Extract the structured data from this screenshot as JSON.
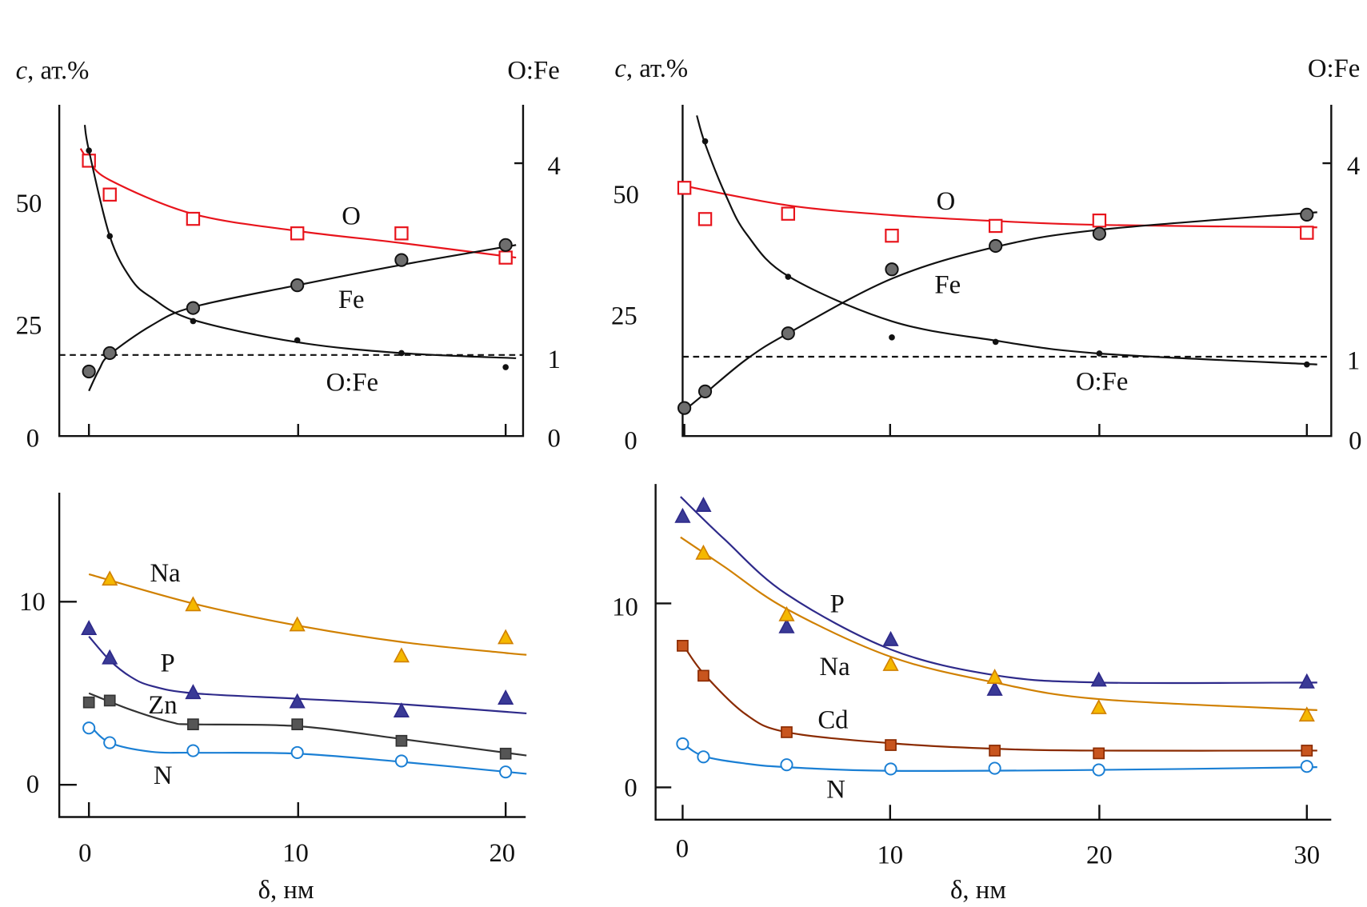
{
  "chart_data": [
    {
      "type": "scatter",
      "panel": "top-left",
      "ylabel_left": "c, ат.%",
      "ylabel_right": "O:Fe",
      "yticks_left": [
        "50",
        "25",
        "0"
      ],
      "yticks_right": [
        "4",
        "1",
        "0"
      ],
      "xlim": [
        0,
        20
      ],
      "ylim": [
        0,
        65
      ],
      "ylim_right": [
        0,
        5
      ],
      "reference_line": {
        "axis": "right",
        "value": 1,
        "style": "dashed"
      },
      "series": [
        {
          "name": "O",
          "axis": "left",
          "marker": "open-square",
          "color": "#e8141c",
          "x": [
            0,
            1,
            5,
            10,
            15,
            20
          ],
          "y": [
            57,
            50,
            45,
            42,
            42,
            37
          ],
          "curve": [
            [
              -0.4,
              59.5
            ],
            [
              0,
              57
            ],
            [
              1,
              53
            ],
            [
              5,
              46
            ],
            [
              10,
              42.5
            ],
            [
              15,
              40
            ],
            [
              20.5,
              37
            ]
          ]
        },
        {
          "name": "Fe",
          "axis": "left",
          "marker": "filled-circle",
          "color": "#111111",
          "x": [
            0,
            1,
            5,
            10,
            15,
            20
          ],
          "y": [
            13.5,
            17.3,
            26.6,
            31.3,
            36.5,
            39.6
          ],
          "curve": [
            [
              0,
              9.5
            ],
            [
              0.5,
              14
            ],
            [
              1,
              17
            ],
            [
              3,
              23
            ],
            [
              5,
              26.8
            ],
            [
              10,
              31.3
            ],
            [
              15,
              35.5
            ],
            [
              20.5,
              39.6
            ]
          ]
        },
        {
          "name": "O:Fe",
          "axis": "right",
          "marker": "dot",
          "color": "#111111",
          "x": [
            0,
            1,
            5,
            10,
            15,
            20
          ],
          "y": [
            4.2,
            2.86,
            1.53,
            1.23,
            1.03,
            0.81
          ],
          "curve": [
            [
              -0.2,
              4.6
            ],
            [
              0,
              4.2
            ],
            [
              1,
              2.86
            ],
            [
              2,
              2.2
            ],
            [
              3,
              1.9
            ],
            [
              5,
              1.55
            ],
            [
              10,
              1.2
            ],
            [
              15,
              1.03
            ],
            [
              20.5,
              0.95
            ]
          ]
        }
      ]
    },
    {
      "type": "scatter",
      "panel": "top-right",
      "ylabel_left": "c, ат.%",
      "ylabel_right": "O:Fe",
      "yticks_left": [
        "50",
        "25",
        "0"
      ],
      "yticks_right": [
        "4",
        "1",
        "0"
      ],
      "xlim": [
        0,
        30
      ],
      "ylim": [
        0,
        65
      ],
      "ylim_right": [
        0,
        5
      ],
      "reference_line": {
        "axis": "right",
        "value": 1,
        "style": "dashed"
      },
      "series": [
        {
          "name": "O",
          "axis": "left",
          "marker": "open-square",
          "color": "#e8141c",
          "x": [
            0,
            1,
            5,
            10,
            15,
            20,
            30
          ],
          "y": [
            49.6,
            43.2,
            44.3,
            39.8,
            41.8,
            42.9,
            40.4
          ],
          "curve": [
            [
              0,
              50
            ],
            [
              5,
              46
            ],
            [
              10,
              44
            ],
            [
              15,
              42.8
            ],
            [
              20,
              42
            ],
            [
              30.5,
              41.5
            ]
          ]
        },
        {
          "name": "Fe",
          "axis": "left",
          "marker": "filled-circle",
          "color": "#111111",
          "x": [
            0,
            1,
            5,
            10,
            15,
            20,
            30
          ],
          "y": [
            4.5,
            7.9,
            19.8,
            32.9,
            37.7,
            40.2,
            44.1
          ],
          "curve": [
            [
              0,
              4
            ],
            [
              1,
              7.5
            ],
            [
              3,
              14.5
            ],
            [
              5,
              19.8
            ],
            [
              10,
              31
            ],
            [
              15,
              37.5
            ],
            [
              20,
              41
            ],
            [
              30.5,
              44.6
            ]
          ]
        },
        {
          "name": "O:Fe",
          "axis": "right",
          "marker": "dot",
          "color": "#111111",
          "x": [
            1,
            5,
            10,
            15,
            20,
            30
          ],
          "y": [
            4.34,
            2.24,
            1.3,
            1.23,
            1.05,
            0.88
          ],
          "curve": [
            [
              0.6,
              4.74
            ],
            [
              1,
              4.3
            ],
            [
              2,
              3.5
            ],
            [
              3,
              2.9
            ],
            [
              5,
              2.25
            ],
            [
              10,
              1.55
            ],
            [
              15,
              1.25
            ],
            [
              20,
              1.05
            ],
            [
              30.5,
              0.88
            ]
          ]
        }
      ]
    },
    {
      "type": "scatter",
      "panel": "bottom-left",
      "xlabel": "δ, нм",
      "xticks": [
        "0",
        "10",
        "20"
      ],
      "yticks_left": [
        "10",
        "0"
      ],
      "xlim": [
        0,
        20
      ],
      "ylim": [
        -1.8,
        16
      ],
      "series": [
        {
          "name": "Na",
          "marker": "filled-triangle",
          "color": "#d08000",
          "fill": "#f5b800",
          "x": [
            1,
            5,
            10,
            15,
            20
          ],
          "y": [
            11.2,
            9.8,
            8.7,
            7.0,
            8.0
          ],
          "curve": [
            [
              0,
              11.5
            ],
            [
              5,
              9.9
            ],
            [
              10,
              8.7
            ],
            [
              15,
              7.8
            ],
            [
              20,
              7.2
            ],
            [
              21,
              7.1
            ]
          ]
        },
        {
          "name": "P",
          "marker": "filled-triangle",
          "color": "#2e2a8a",
          "fill": "#3a3a96",
          "x": [
            0,
            1,
            5,
            10,
            15,
            20
          ],
          "y": [
            8.5,
            6.9,
            5.0,
            4.5,
            4.0,
            4.7
          ],
          "curve": [
            [
              0,
              8.1
            ],
            [
              1,
              6.8
            ],
            [
              2,
              5.9
            ],
            [
              3,
              5.4
            ],
            [
              5,
              5.0
            ],
            [
              10,
              4.7
            ],
            [
              15,
              4.4
            ],
            [
              21,
              3.9
            ]
          ]
        },
        {
          "name": "Zn",
          "marker": "filled-square",
          "color": "#333333",
          "fill": "#555555",
          "x": [
            0,
            1,
            5,
            10,
            15,
            20
          ],
          "y": [
            4.5,
            4.6,
            3.3,
            3.3,
            2.4,
            1.7
          ],
          "curve": [
            [
              0,
              5.0
            ],
            [
              2,
              4.1
            ],
            [
              4,
              3.4
            ],
            [
              5,
              3.3
            ],
            [
              10,
              3.2
            ],
            [
              15,
              2.5
            ],
            [
              21,
              1.6
            ]
          ]
        },
        {
          "name": "N",
          "marker": "open-circle",
          "color": "#1a7fd4",
          "x": [
            0,
            1,
            5,
            10,
            15,
            20
          ],
          "y": [
            3.1,
            2.3,
            1.86,
            1.76,
            1.3,
            0.7
          ],
          "curve": [
            [
              0,
              3.3
            ],
            [
              1,
              2.3
            ],
            [
              3,
              1.8
            ],
            [
              5,
              1.75
            ],
            [
              10,
              1.7
            ],
            [
              15,
              1.25
            ],
            [
              21,
              0.6
            ]
          ]
        }
      ]
    },
    {
      "type": "scatter",
      "panel": "bottom-right",
      "xlabel": "δ, нм",
      "xticks": [
        "0",
        "10",
        "20",
        "30"
      ],
      "yticks_left": [
        "10",
        "0"
      ],
      "xlim": [
        0,
        30
      ],
      "ylim": [
        -1.7,
        16.5
      ],
      "series": [
        {
          "name": "P",
          "marker": "filled-triangle",
          "color": "#2e2a8a",
          "fill": "#3a3a96",
          "x": [
            0,
            1,
            5,
            10,
            15,
            20,
            30
          ],
          "y": [
            14.7,
            15.3,
            8.7,
            8.0,
            5.3,
            5.8,
            5.7
          ],
          "curve": [
            [
              -0.1,
              15.8
            ],
            [
              2,
              13.5
            ],
            [
              5,
              10.5
            ],
            [
              10,
              7.5
            ],
            [
              15,
              6.1
            ],
            [
              20,
              5.7
            ],
            [
              30.5,
              5.7
            ]
          ]
        },
        {
          "name": "Na",
          "marker": "filled-triangle",
          "color": "#d08000",
          "fill": "#f5b800",
          "x": [
            1,
            5,
            10,
            15,
            20,
            30
          ],
          "y": [
            12.7,
            9.35,
            6.65,
            5.95,
            4.3,
            3.9
          ],
          "curve": [
            [
              -0.1,
              13.6
            ],
            [
              2,
              12
            ],
            [
              5,
              9.7
            ],
            [
              10,
              7.1
            ],
            [
              15,
              5.7
            ],
            [
              20,
              4.8
            ],
            [
              30.5,
              4.2
            ]
          ]
        },
        {
          "name": "Cd",
          "marker": "filled-square",
          "color": "#8a2a00",
          "fill": "#c8551e",
          "x": [
            0,
            1,
            5,
            10,
            15,
            20,
            30
          ],
          "y": [
            7.7,
            6.07,
            3.0,
            2.3,
            2.0,
            1.85,
            2.0
          ],
          "curve": [
            [
              0,
              7.8
            ],
            [
              1,
              6.2
            ],
            [
              3,
              4.0
            ],
            [
              5,
              3.0
            ],
            [
              10,
              2.4
            ],
            [
              15,
              2.1
            ],
            [
              20,
              2.0
            ],
            [
              30.5,
              2.0
            ]
          ]
        },
        {
          "name": "N",
          "marker": "open-circle",
          "color": "#1a7fd4",
          "x": [
            0,
            1,
            5,
            10,
            15,
            20,
            30
          ],
          "y": [
            2.37,
            1.66,
            1.23,
            1.0,
            1.04,
            0.95,
            1.14
          ],
          "curve": [
            [
              0,
              2.4
            ],
            [
              1,
              1.7
            ],
            [
              3,
              1.3
            ],
            [
              5,
              1.1
            ],
            [
              10,
              0.9
            ],
            [
              20,
              0.95
            ],
            [
              30.5,
              1.1
            ]
          ]
        }
      ]
    }
  ]
}
